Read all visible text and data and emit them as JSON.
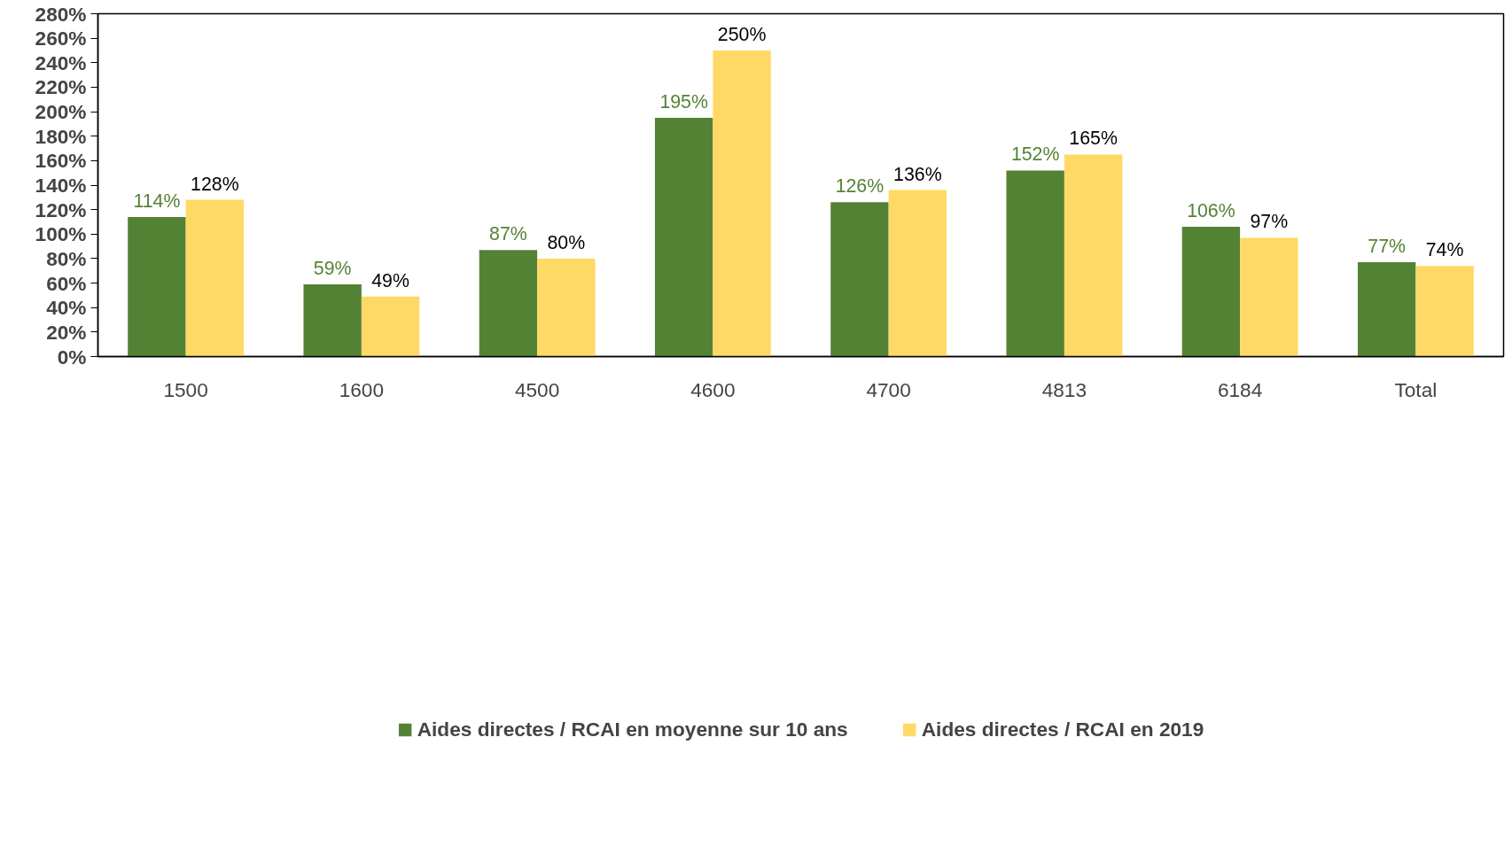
{
  "chart_data": {
    "type": "bar",
    "categories": [
      "1500",
      "1600",
      "4500",
      "4600",
      "4700",
      "4813",
      "6184",
      "Total"
    ],
    "series": [
      {
        "name": "Aides directes / RCAI en moyenne sur 10 ans",
        "color": "#548235",
        "values": [
          114,
          59,
          87,
          195,
          126,
          152,
          106,
          77
        ],
        "value_labels": [
          "114%",
          "59%",
          "87%",
          "195%",
          "126%",
          "152%",
          "106%",
          "77%"
        ]
      },
      {
        "name": "Aides directes / RCAI en 2019",
        "color": "#ffd966",
        "values": [
          128,
          49,
          80,
          250,
          136,
          165,
          97,
          74
        ],
        "value_labels": [
          "128%",
          "49%",
          "80%",
          "250%",
          "136%",
          "165%",
          "97%",
          "74%"
        ]
      }
    ],
    "ylim": [
      0,
      280
    ],
    "yticks": [
      {
        "value": 0,
        "label": "0%"
      },
      {
        "value": 20,
        "label": "20%"
      },
      {
        "value": 40,
        "label": "40%"
      },
      {
        "value": 60,
        "label": "60%"
      },
      {
        "value": 80,
        "label": "80%"
      },
      {
        "value": 100,
        "label": "100%"
      },
      {
        "value": 120,
        "label": "120%"
      },
      {
        "value": 140,
        "label": "140%"
      },
      {
        "value": 160,
        "label": "160%"
      },
      {
        "value": 180,
        "label": "180%"
      },
      {
        "value": 200,
        "label": "200%"
      },
      {
        "value": 220,
        "label": "220%"
      },
      {
        "value": 240,
        "label": "240%"
      },
      {
        "value": 260,
        "label": "260%"
      },
      {
        "value": 280,
        "label": "280%"
      }
    ],
    "grid": false,
    "legend": "bottom"
  }
}
